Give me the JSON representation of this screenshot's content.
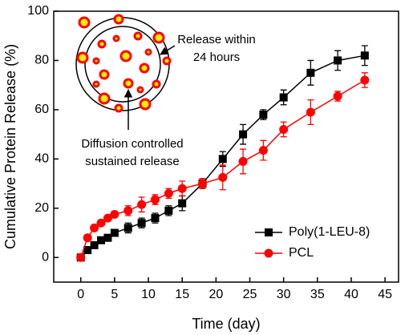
{
  "chart_data": {
    "type": "line",
    "x_label": "Time (day)",
    "y_label": "Cumulative Protein Release (%)",
    "xlim": [
      -4,
      47
    ],
    "ylim": [
      -10,
      100
    ],
    "xticks": [
      0,
      5,
      10,
      15,
      20,
      25,
      30,
      35,
      40,
      45
    ],
    "yticks": [
      0,
      20,
      40,
      60,
      80,
      100
    ],
    "legend": "lower right",
    "annotations": [
      {
        "lines": [
          "Release within",
          "24 hours"
        ]
      },
      {
        "lines": [
          "Diffusion controlled",
          "sustained release"
        ]
      }
    ],
    "series": [
      {
        "name": "Poly(1-LEU-8)",
        "color": "#000000",
        "marker": "square",
        "x": [
          0,
          1,
          2,
          3,
          4,
          5,
          7,
          9,
          11,
          13,
          15,
          18,
          21,
          24,
          27,
          30,
          34,
          38,
          42
        ],
        "values": [
          0,
          3,
          5,
          7,
          8,
          10,
          12,
          14,
          16,
          19,
          22,
          30,
          40,
          50,
          58,
          65,
          75,
          80,
          82
        ],
        "errors": [
          1,
          1,
          1,
          1,
          1,
          1,
          2,
          2,
          2,
          2,
          3,
          2,
          3,
          4,
          2,
          3,
          5,
          4,
          4
        ]
      },
      {
        "name": "PCL",
        "color": "#ff0000",
        "marker": "circle",
        "x": [
          0,
          1,
          2,
          3,
          4,
          5,
          7,
          9,
          11,
          13,
          15,
          18,
          21,
          24,
          27,
          30,
          34,
          38,
          42
        ],
        "values": [
          0,
          8,
          12,
          14,
          16,
          17.5,
          19,
          21.5,
          23.5,
          26,
          28,
          30,
          32.5,
          39,
          43.5,
          52,
          59,
          65.5,
          72
        ],
        "errors": [
          1,
          1,
          1,
          1,
          1,
          1,
          2,
          3,
          2,
          2,
          3,
          2,
          5,
          5,
          4,
          3,
          5,
          2,
          3
        ]
      }
    ]
  }
}
